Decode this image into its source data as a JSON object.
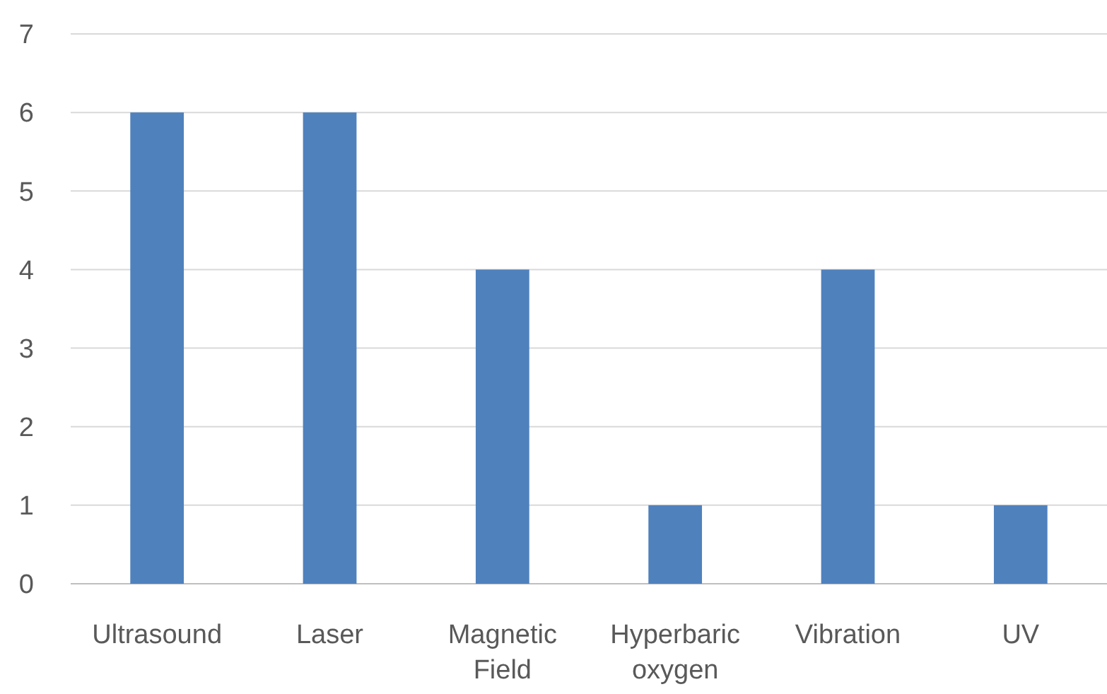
{
  "chart_data": {
    "type": "bar",
    "categories": [
      "Ultrasound",
      "Laser",
      "Magnetic Field",
      "Hyperbaric oxygen",
      "Vibration",
      "UV"
    ],
    "values": [
      6,
      6,
      4,
      1,
      4,
      1
    ],
    "color": "#4f81bd",
    "ylim": [
      0,
      7
    ],
    "yticks": [
      0,
      1,
      2,
      3,
      4,
      5,
      6,
      7
    ],
    "grid": "y"
  }
}
